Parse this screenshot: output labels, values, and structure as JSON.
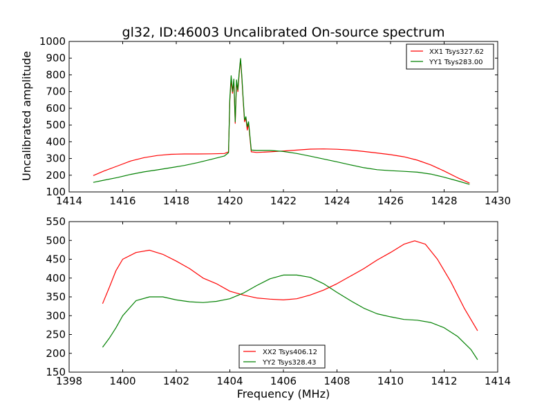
{
  "chart_data": [
    {
      "type": "line",
      "title": "gl32, ID:46003 Uncalibrated On-source spectrum",
      "xlabel": "",
      "ylabel": "Uncalibrated amplitude",
      "xlim": [
        1414,
        1430
      ],
      "ylim": [
        100,
        1000
      ],
      "xticks": [
        1414,
        1416,
        1418,
        1420,
        1422,
        1424,
        1426,
        1428,
        1430
      ],
      "yticks": [
        100,
        200,
        300,
        400,
        500,
        600,
        700,
        800,
        900,
        1000
      ],
      "grid": false,
      "legend_position": "top-right",
      "series": [
        {
          "name": "XX1 Tsys327.62",
          "color": "#ff0000",
          "points": [
            [
              1414.9,
              198
            ],
            [
              1415.3,
              225
            ],
            [
              1415.8,
              255
            ],
            [
              1416.3,
              285
            ],
            [
              1416.8,
              305
            ],
            [
              1417.3,
              318
            ],
            [
              1417.8,
              325
            ],
            [
              1418.3,
              327
            ],
            [
              1418.8,
              327
            ],
            [
              1419.3,
              328
            ],
            [
              1419.8,
              330
            ],
            [
              1419.95,
              340
            ],
            [
              1420.0,
              650
            ],
            [
              1420.05,
              770
            ],
            [
              1420.1,
              690
            ],
            [
              1420.15,
              760
            ],
            [
              1420.2,
              510
            ],
            [
              1420.25,
              760
            ],
            [
              1420.3,
              700
            ],
            [
              1420.35,
              810
            ],
            [
              1420.4,
              890
            ],
            [
              1420.45,
              780
            ],
            [
              1420.5,
              640
            ],
            [
              1420.55,
              520
            ],
            [
              1420.6,
              540
            ],
            [
              1420.65,
              470
            ],
            [
              1420.7,
              510
            ],
            [
              1420.8,
              340
            ],
            [
              1421.0,
              336
            ],
            [
              1421.5,
              340
            ],
            [
              1422.0,
              345
            ],
            [
              1422.5,
              350
            ],
            [
              1423.0,
              356
            ],
            [
              1423.5,
              357
            ],
            [
              1424.0,
              355
            ],
            [
              1424.5,
              350
            ],
            [
              1425.0,
              342
            ],
            [
              1425.5,
              333
            ],
            [
              1426.0,
              323
            ],
            [
              1426.5,
              310
            ],
            [
              1427.0,
              290
            ],
            [
              1427.5,
              262
            ],
            [
              1428.0,
              225
            ],
            [
              1428.5,
              185
            ],
            [
              1428.95,
              153
            ]
          ]
        },
        {
          "name": "YY1 Tsys283.00",
          "color": "#008000",
          "points": [
            [
              1414.9,
              157
            ],
            [
              1415.3,
              170
            ],
            [
              1415.8,
              186
            ],
            [
              1416.3,
              205
            ],
            [
              1416.8,
              220
            ],
            [
              1417.3,
              232
            ],
            [
              1417.8,
              245
            ],
            [
              1418.3,
              258
            ],
            [
              1418.8,
              275
            ],
            [
              1419.3,
              295
            ],
            [
              1419.8,
              315
            ],
            [
              1419.95,
              335
            ],
            [
              1420.0,
              660
            ],
            [
              1420.05,
              795
            ],
            [
              1420.1,
              700
            ],
            [
              1420.15,
              775
            ],
            [
              1420.2,
              520
            ],
            [
              1420.25,
              770
            ],
            [
              1420.3,
              710
            ],
            [
              1420.35,
              820
            ],
            [
              1420.4,
              898
            ],
            [
              1420.45,
              790
            ],
            [
              1420.5,
              650
            ],
            [
              1420.55,
              530
            ],
            [
              1420.6,
              550
            ],
            [
              1420.65,
              490
            ],
            [
              1420.7,
              520
            ],
            [
              1420.8,
              350
            ],
            [
              1421.0,
              348
            ],
            [
              1421.5,
              348
            ],
            [
              1422.0,
              342
            ],
            [
              1422.5,
              330
            ],
            [
              1423.0,
              314
            ],
            [
              1423.5,
              297
            ],
            [
              1424.0,
              280
            ],
            [
              1424.5,
              262
            ],
            [
              1425.0,
              245
            ],
            [
              1425.5,
              233
            ],
            [
              1426.0,
              227
            ],
            [
              1426.5,
              223
            ],
            [
              1427.0,
              218
            ],
            [
              1427.5,
              207
            ],
            [
              1428.0,
              188
            ],
            [
              1428.5,
              166
            ],
            [
              1428.95,
              145
            ]
          ]
        }
      ]
    },
    {
      "type": "line",
      "title": "",
      "xlabel": "Frequency (MHz)",
      "ylabel": "",
      "xlim": [
        1398,
        1414
      ],
      "ylim": [
        150,
        550
      ],
      "xticks": [
        1398,
        1400,
        1402,
        1404,
        1406,
        1408,
        1410,
        1412,
        1414
      ],
      "yticks": [
        150,
        200,
        250,
        300,
        350,
        400,
        450,
        500,
        550
      ],
      "grid": false,
      "legend_position": "bottom-center",
      "series": [
        {
          "name": "XX2 Tsys406.12",
          "color": "#ff0000",
          "points": [
            [
              1399.25,
              332
            ],
            [
              1399.5,
              375
            ],
            [
              1399.75,
              420
            ],
            [
              1400.0,
              450
            ],
            [
              1400.5,
              468
            ],
            [
              1401.0,
              474
            ],
            [
              1401.5,
              463
            ],
            [
              1402.0,
              445
            ],
            [
              1402.5,
              425
            ],
            [
              1403.0,
              400
            ],
            [
              1403.5,
              385
            ],
            [
              1404.0,
              365
            ],
            [
              1404.5,
              355
            ],
            [
              1405.0,
              347
            ],
            [
              1405.5,
              344
            ],
            [
              1406.0,
              342
            ],
            [
              1406.5,
              345
            ],
            [
              1407.0,
              355
            ],
            [
              1407.5,
              368
            ],
            [
              1408.0,
              385
            ],
            [
              1408.5,
              405
            ],
            [
              1409.0,
              425
            ],
            [
              1409.5,
              448
            ],
            [
              1410.0,
              468
            ],
            [
              1410.5,
              490
            ],
            [
              1410.9,
              499
            ],
            [
              1411.3,
              490
            ],
            [
              1411.75,
              450
            ],
            [
              1412.25,
              390
            ],
            [
              1412.75,
              320
            ],
            [
              1413.25,
              260
            ]
          ]
        },
        {
          "name": "YY2 Tsys328.43",
          "color": "#008000",
          "points": [
            [
              1399.25,
              216
            ],
            [
              1399.5,
              240
            ],
            [
              1399.75,
              268
            ],
            [
              1400.0,
              300
            ],
            [
              1400.5,
              340
            ],
            [
              1401.0,
              350
            ],
            [
              1401.5,
              350
            ],
            [
              1402.0,
              342
            ],
            [
              1402.5,
              337
            ],
            [
              1403.0,
              335
            ],
            [
              1403.5,
              338
            ],
            [
              1404.0,
              345
            ],
            [
              1404.5,
              360
            ],
            [
              1405.0,
              380
            ],
            [
              1405.5,
              398
            ],
            [
              1406.0,
              408
            ],
            [
              1406.5,
              408
            ],
            [
              1407.0,
              402
            ],
            [
              1407.5,
              385
            ],
            [
              1408.0,
              362
            ],
            [
              1408.5,
              340
            ],
            [
              1409.0,
              320
            ],
            [
              1409.5,
              305
            ],
            [
              1410.0,
              297
            ],
            [
              1410.5,
              290
            ],
            [
              1411.0,
              288
            ],
            [
              1411.5,
              282
            ],
            [
              1412.0,
              268
            ],
            [
              1412.5,
              245
            ],
            [
              1413.0,
              210
            ],
            [
              1413.25,
              183
            ]
          ]
        }
      ]
    }
  ]
}
